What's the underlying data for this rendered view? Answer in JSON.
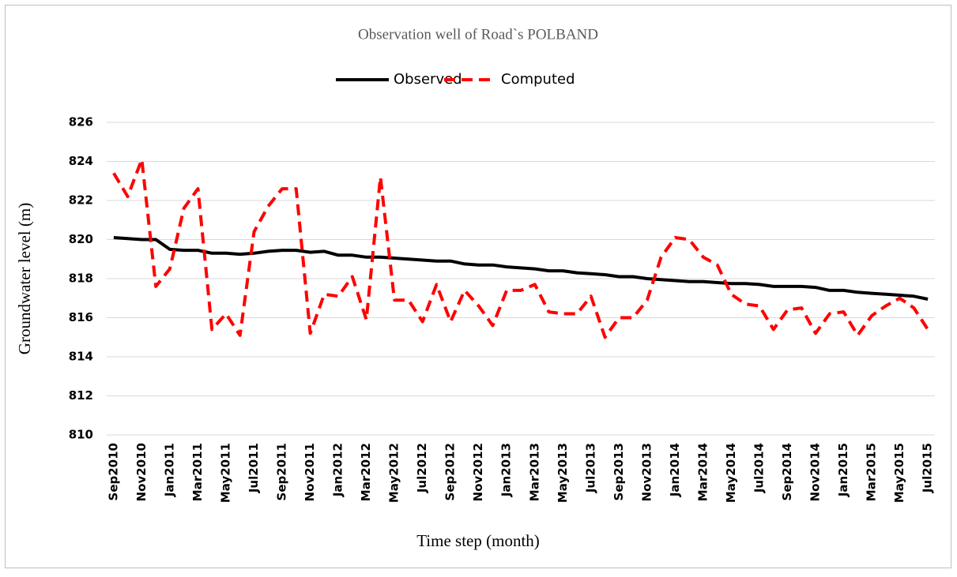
{
  "chart_data": {
    "type": "line",
    "title": "Observation well of Road`s POLBAND",
    "x_label": "Time step (month)",
    "y_label": "Groundwater level (m)",
    "categories": [
      "Sep2010",
      null,
      "Nov2010",
      null,
      "Jan2011",
      null,
      "Mar2011",
      null,
      "May2011",
      null,
      "Jul2011",
      null,
      "Sep2011",
      null,
      "Nov2011",
      null,
      "Jan2012",
      null,
      "Mar2012",
      null,
      "May2012",
      null,
      "Jul2012",
      null,
      "Sep2012",
      null,
      "Nov2012",
      null,
      "Jan2013",
      null,
      "Mar2013",
      null,
      "May2013",
      null,
      "Jul2013",
      null,
      "Sep2013",
      null,
      "Nov2013",
      null,
      "Jan2014",
      null,
      "Mar2014",
      null,
      "May2014",
      null,
      "Jul2014",
      null,
      "Sep2014",
      null,
      "Nov2014",
      null,
      "Jan2015",
      null,
      "Mar2015",
      null,
      "May2015",
      null,
      "Jul2015"
    ],
    "series": [
      {
        "name": "Observed",
        "color": "#000000",
        "dashed": false,
        "values": [
          820.1,
          820.05,
          820.0,
          820.0,
          819.5,
          819.45,
          819.45,
          819.3,
          819.3,
          819.25,
          819.3,
          819.4,
          819.45,
          819.45,
          819.35,
          819.4,
          819.2,
          819.2,
          819.1,
          819.1,
          819.05,
          819.0,
          818.95,
          818.9,
          818.9,
          818.75,
          818.7,
          818.7,
          818.6,
          818.55,
          818.5,
          818.4,
          818.4,
          818.3,
          818.25,
          818.2,
          818.1,
          818.1,
          818.0,
          817.95,
          817.9,
          817.85,
          817.85,
          817.8,
          817.75,
          817.75,
          817.7,
          817.6,
          817.6,
          817.6,
          817.55,
          817.4,
          817.4,
          817.3,
          817.25,
          817.2,
          817.15,
          817.1,
          816.95
        ]
      },
      {
        "name": "Computed",
        "color": "#ff0000",
        "dashed": true,
        "values": [
          823.4,
          822.2,
          824.1,
          817.6,
          818.5,
          821.6,
          822.6,
          815.4,
          816.2,
          815.1,
          820.4,
          821.7,
          822.6,
          822.6,
          815.2,
          817.2,
          817.1,
          818.1,
          815.9,
          823.2,
          816.9,
          816.9,
          815.8,
          817.7,
          815.8,
          817.4,
          816.6,
          815.6,
          817.4,
          817.4,
          817.7,
          816.3,
          816.2,
          816.2,
          817.1,
          815.0,
          816.0,
          816.0,
          816.9,
          819.1,
          820.1,
          820.0,
          819.1,
          818.7,
          817.2,
          816.7,
          816.6,
          815.4,
          816.4,
          816.5,
          815.2,
          816.2,
          816.3,
          815.1,
          816.1,
          816.6,
          817.0,
          816.5,
          815.4
        ]
      }
    ],
    "ylim": [
      810,
      826
    ],
    "yticks": [
      810,
      812,
      814,
      816,
      818,
      820,
      822,
      824,
      826
    ],
    "grid": true,
    "legend": "top"
  }
}
